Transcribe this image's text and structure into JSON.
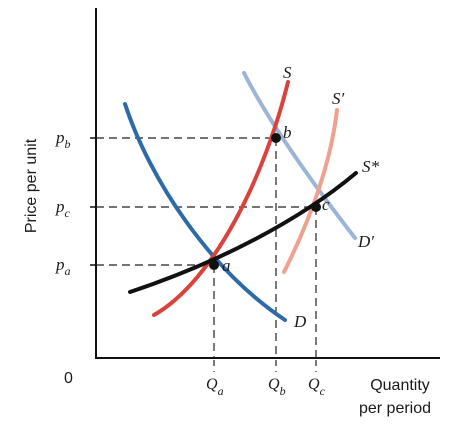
{
  "axes": {
    "y_label": "Price per unit",
    "x_label_line1": "Quantity",
    "x_label_line2": "per period",
    "origin": "0"
  },
  "price_ticks": [
    {
      "base": "p",
      "sub": "b"
    },
    {
      "base": "p",
      "sub": "c"
    },
    {
      "base": "p",
      "sub": "a"
    }
  ],
  "quantity_ticks": [
    {
      "base": "Q",
      "sub": "a"
    },
    {
      "base": "Q",
      "sub": "b"
    },
    {
      "base": "Q",
      "sub": "c"
    }
  ],
  "curves": {
    "D": {
      "label": "D",
      "color": "#2e6aa8"
    },
    "D_prime": {
      "label": "D′",
      "color": "#9bb5d6"
    },
    "S": {
      "label": "S",
      "color": "#d9433e"
    },
    "S_prime": {
      "label": "S′",
      "color": "#eea18e"
    },
    "S_star": {
      "label": "S*",
      "color": "#111111"
    }
  },
  "points": {
    "a": "a",
    "b": "b",
    "c": "c"
  }
}
